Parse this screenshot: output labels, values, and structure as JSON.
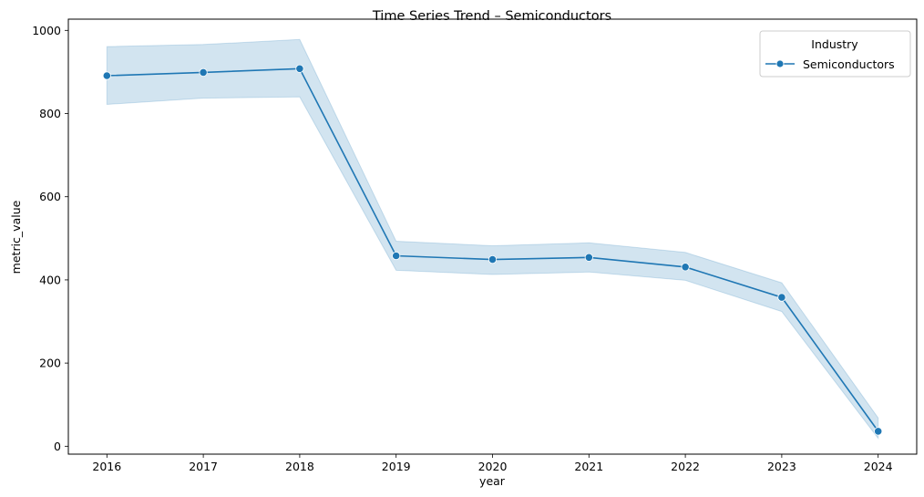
{
  "chart_data": {
    "type": "line",
    "title": "Time Series Trend – Semiconductors",
    "xlabel": "year",
    "ylabel": "metric_value",
    "x": [
      2016,
      2017,
      2018,
      2019,
      2020,
      2021,
      2022,
      2023,
      2024
    ],
    "xticks": [
      "2016",
      "2017",
      "2018",
      "2019",
      "2020",
      "2021",
      "2022",
      "2023",
      "2024"
    ],
    "yticks": [
      0,
      200,
      400,
      600,
      800,
      1000
    ],
    "ylim": [
      -19,
      1027
    ],
    "xlim": [
      2015.6,
      2024.4
    ],
    "series": [
      {
        "name": "Semiconductors",
        "color": "#1f77b4",
        "band_color": "#1f77b4",
        "values": [
          891,
          899,
          908,
          458,
          449,
          454,
          431,
          358,
          36
        ],
        "lower": [
          822,
          837,
          840,
          423,
          413,
          419,
          399,
          324,
          19
        ],
        "upper": [
          961,
          966,
          978,
          493,
          482,
          489,
          466,
          393,
          68
        ]
      }
    ],
    "legend": {
      "title": "Industry",
      "position": "top-right"
    },
    "grid": false
  }
}
